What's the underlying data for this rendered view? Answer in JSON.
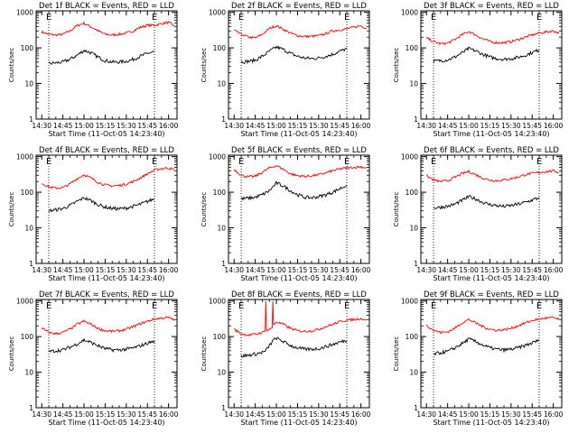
{
  "figure": {
    "x_ticks": [
      "14:30",
      "14:45",
      "15:00",
      "15:15",
      "15:30",
      "15:45",
      "16:00"
    ],
    "y_tick_labels": [
      "1",
      "10",
      "100",
      "1000"
    ],
    "xlabel": "Start Time (11-Oct-05 14:23:40)",
    "ylabel": "Counts/sec",
    "marker": "E",
    "colors": {
      "events": "#000000",
      "lld": "#ff0000",
      "axes": "#000000",
      "background": "#ffffff"
    }
  },
  "chart_data": [
    {
      "type": "line",
      "title": "Det 1f BLACK = Events, RED = LLD",
      "xlabel": "Start Time (11-Oct-05 14:23:40)",
      "ylabel": "Counts/sec",
      "y_scale": "log",
      "ylim": [
        1,
        1100
      ],
      "x_labels": [
        "14:30",
        "14:45",
        "15:00",
        "15:15",
        "15:30",
        "15:45",
        "16:00"
      ],
      "x_minutes": [
        0,
        15,
        30,
        45,
        60,
        75,
        90
      ],
      "xlim": [
        -4,
        96
      ],
      "vlines": [
        5,
        80
      ],
      "grid": false,
      "legend": "none",
      "series": [
        {
          "name": "LLD",
          "color": "#ff0000",
          "x": [
            0,
            5,
            10,
            15,
            20,
            25,
            30,
            35,
            40,
            45,
            50,
            55,
            60,
            65,
            70,
            75,
            80,
            85,
            90,
            94
          ],
          "y": [
            280,
            240,
            230,
            240,
            300,
            420,
            490,
            390,
            300,
            240,
            230,
            240,
            260,
            300,
            380,
            430,
            430,
            480,
            520,
            420
          ]
        },
        {
          "name": "Events",
          "color": "#000000",
          "x": [
            5,
            10,
            15,
            20,
            25,
            30,
            35,
            40,
            45,
            50,
            55,
            60,
            65,
            70,
            75,
            80
          ],
          "y": [
            36,
            38,
            40,
            48,
            62,
            85,
            72,
            55,
            44,
            40,
            40,
            42,
            48,
            58,
            70,
            78
          ]
        }
      ]
    },
    {
      "type": "line",
      "title": "Det 2f BLACK = Events, RED = LLD",
      "xlabel": "Start Time (11-Oct-05 14:23:40)",
      "ylabel": "Counts/sec",
      "y_scale": "log",
      "ylim": [
        1,
        1100
      ],
      "x_labels": [
        "14:30",
        "14:45",
        "15:00",
        "15:15",
        "15:30",
        "15:45",
        "16:00"
      ],
      "x_minutes": [
        0,
        15,
        30,
        45,
        60,
        75,
        90
      ],
      "xlim": [
        -4,
        96
      ],
      "vlines": [
        5,
        80
      ],
      "grid": false,
      "legend": "none",
      "series": [
        {
          "name": "LLD",
          "color": "#ff0000",
          "x": [
            0,
            5,
            10,
            15,
            20,
            25,
            30,
            35,
            40,
            45,
            50,
            55,
            60,
            65,
            70,
            75,
            80,
            85,
            90,
            94
          ],
          "y": [
            310,
            240,
            200,
            190,
            240,
            350,
            420,
            330,
            260,
            220,
            210,
            210,
            220,
            250,
            300,
            320,
            340,
            380,
            420,
            350
          ]
        },
        {
          "name": "Events",
          "color": "#000000",
          "x": [
            5,
            10,
            15,
            20,
            25,
            30,
            35,
            40,
            45,
            50,
            55,
            60,
            65,
            70,
            75,
            80
          ],
          "y": [
            40,
            42,
            45,
            58,
            80,
            105,
            90,
            70,
            58,
            52,
            50,
            52,
            58,
            66,
            80,
            95
          ]
        }
      ]
    },
    {
      "type": "line",
      "title": "Det 3f BLACK = Events, RED = LLD",
      "xlabel": "Start Time (11-Oct-05 14:23:40)",
      "ylabel": "Counts/sec",
      "y_scale": "log",
      "ylim": [
        1,
        1100
      ],
      "x_labels": [
        "14:30",
        "14:45",
        "15:00",
        "15:15",
        "15:30",
        "15:45",
        "16:00"
      ],
      "x_minutes": [
        0,
        15,
        30,
        45,
        60,
        75,
        90
      ],
      "xlim": [
        -4,
        96
      ],
      "vlines": [
        5,
        80
      ],
      "grid": false,
      "legend": "none",
      "series": [
        {
          "name": "LLD",
          "color": "#ff0000",
          "x": [
            0,
            5,
            10,
            15,
            20,
            25,
            30,
            35,
            40,
            45,
            50,
            55,
            60,
            65,
            70,
            75,
            80,
            85,
            90,
            94
          ],
          "y": [
            190,
            150,
            130,
            135,
            170,
            230,
            290,
            230,
            180,
            150,
            140,
            140,
            150,
            170,
            200,
            230,
            260,
            280,
            300,
            260
          ]
        },
        {
          "name": "Events",
          "color": "#000000",
          "x": [
            5,
            10,
            15,
            20,
            25,
            30,
            35,
            40,
            45,
            50,
            55,
            60,
            65,
            70,
            75,
            80
          ],
          "y": [
            42,
            44,
            46,
            55,
            72,
            95,
            82,
            66,
            55,
            50,
            48,
            50,
            54,
            62,
            74,
            88
          ]
        }
      ]
    },
    {
      "type": "line",
      "title": "Det 4f BLACK = Events, RED = LLD",
      "xlabel": "Start Time (11-Oct-05 14:23:40)",
      "ylabel": "Counts/sec",
      "y_scale": "log",
      "ylim": [
        1,
        1100
      ],
      "x_labels": [
        "14:30",
        "14:45",
        "15:00",
        "15:15",
        "15:30",
        "15:45",
        "16:00"
      ],
      "x_minutes": [
        0,
        15,
        30,
        45,
        60,
        75,
        90
      ],
      "xlim": [
        -4,
        96
      ],
      "vlines": [
        5,
        80
      ],
      "grid": false,
      "legend": "none",
      "series": [
        {
          "name": "LLD",
          "color": "#ff0000",
          "x": [
            0,
            5,
            10,
            15,
            20,
            25,
            30,
            35,
            40,
            45,
            50,
            55,
            60,
            65,
            70,
            75,
            80,
            85,
            90,
            94
          ],
          "y": [
            180,
            140,
            130,
            135,
            170,
            240,
            310,
            250,
            190,
            160,
            150,
            155,
            170,
            200,
            250,
            330,
            420,
            460,
            480,
            420
          ]
        },
        {
          "name": "Events",
          "color": "#000000",
          "x": [
            5,
            10,
            15,
            20,
            25,
            30,
            35,
            40,
            45,
            50,
            55,
            60,
            65,
            70,
            75,
            80
          ],
          "y": [
            30,
            32,
            35,
            42,
            55,
            70,
            58,
            45,
            38,
            35,
            34,
            36,
            40,
            46,
            55,
            65
          ]
        }
      ]
    },
    {
      "type": "line",
      "title": "Det 5f BLACK = Events, RED = LLD",
      "xlabel": "Start Time (11-Oct-05 14:23:40)",
      "ylabel": "Counts/sec",
      "y_scale": "log",
      "ylim": [
        1,
        1100
      ],
      "x_labels": [
        "14:30",
        "14:45",
        "15:00",
        "15:15",
        "15:30",
        "15:45",
        "16:00"
      ],
      "x_minutes": [
        0,
        15,
        30,
        45,
        60,
        75,
        90
      ],
      "xlim": [
        -4,
        96
      ],
      "vlines": [
        5,
        80
      ],
      "grid": false,
      "legend": "none",
      "series": [
        {
          "name": "LLD",
          "color": "#ff0000",
          "x": [
            0,
            5,
            10,
            15,
            20,
            25,
            30,
            35,
            40,
            45,
            50,
            55,
            60,
            65,
            70,
            75,
            80,
            85,
            90,
            94
          ],
          "y": [
            440,
            300,
            270,
            280,
            360,
            480,
            560,
            440,
            330,
            290,
            280,
            290,
            310,
            350,
            400,
            450,
            480,
            500,
            520,
            480
          ]
        },
        {
          "name": "Events",
          "color": "#000000",
          "x": [
            5,
            10,
            15,
            20,
            25,
            30,
            35,
            40,
            45,
            50,
            55,
            60,
            65,
            70,
            75,
            80
          ],
          "y": [
            65,
            68,
            72,
            85,
            110,
            180,
            150,
            110,
            85,
            72,
            70,
            75,
            85,
            100,
            125,
            160
          ]
        }
      ]
    },
    {
      "type": "line",
      "title": "Det 6f BLACK = Events, RED = LLD",
      "xlabel": "Start Time (11-Oct-05 14:23:40)",
      "ylabel": "Counts/sec",
      "y_scale": "log",
      "ylim": [
        1,
        1100
      ],
      "x_labels": [
        "14:30",
        "14:45",
        "15:00",
        "15:15",
        "15:30",
        "15:45",
        "16:00"
      ],
      "x_minutes": [
        0,
        15,
        30,
        45,
        60,
        75,
        90
      ],
      "xlim": [
        -4,
        96
      ],
      "vlines": [
        5,
        80
      ],
      "grid": false,
      "legend": "none",
      "series": [
        {
          "name": "LLD",
          "color": "#ff0000",
          "x": [
            0,
            5,
            10,
            15,
            20,
            25,
            30,
            35,
            40,
            45,
            50,
            55,
            60,
            65,
            70,
            75,
            80,
            85,
            90,
            94
          ],
          "y": [
            290,
            220,
            200,
            210,
            260,
            330,
            380,
            310,
            250,
            220,
            210,
            220,
            240,
            270,
            310,
            340,
            360,
            380,
            400,
            360
          ]
        },
        {
          "name": "Events",
          "color": "#000000",
          "x": [
            5,
            10,
            15,
            20,
            25,
            30,
            35,
            40,
            45,
            50,
            55,
            60,
            65,
            70,
            75,
            80
          ],
          "y": [
            36,
            38,
            40,
            46,
            58,
            75,
            65,
            52,
            45,
            42,
            40,
            42,
            46,
            52,
            60,
            70
          ]
        }
      ]
    },
    {
      "type": "line",
      "title": "Det 7f BLACK = Events, RED = LLD",
      "xlabel": "Start Time (11-Oct-05 14:23:40)",
      "ylabel": "Counts/sec",
      "y_scale": "log",
      "ylim": [
        1,
        1100
      ],
      "x_labels": [
        "14:30",
        "14:45",
        "15:00",
        "15:15",
        "15:30",
        "15:45",
        "16:00"
      ],
      "x_minutes": [
        0,
        15,
        30,
        45,
        60,
        75,
        90
      ],
      "xlim": [
        -4,
        96
      ],
      "vlines": [
        5,
        80
      ],
      "grid": false,
      "legend": "none",
      "series": [
        {
          "name": "LLD",
          "color": "#ff0000",
          "x": [
            0,
            5,
            10,
            15,
            20,
            25,
            30,
            35,
            40,
            45,
            50,
            55,
            60,
            65,
            70,
            75,
            80,
            85,
            90,
            94
          ],
          "y": [
            170,
            130,
            120,
            130,
            160,
            220,
            270,
            220,
            170,
            145,
            140,
            145,
            160,
            190,
            230,
            270,
            310,
            330,
            340,
            300
          ]
        },
        {
          "name": "Events",
          "color": "#000000",
          "x": [
            5,
            10,
            15,
            20,
            25,
            30,
            35,
            40,
            45,
            50,
            55,
            60,
            65,
            70,
            75,
            80
          ],
          "y": [
            38,
            40,
            42,
            50,
            62,
            80,
            68,
            55,
            46,
            42,
            42,
            44,
            48,
            55,
            65,
            75
          ]
        }
      ]
    },
    {
      "type": "line",
      "title": "Det 8f BLACK = Events, RED = LLD",
      "xlabel": "Start Time (11-Oct-05 14:23:40)",
      "ylabel": "Counts/sec",
      "y_scale": "log",
      "ylim": [
        1,
        1100
      ],
      "x_labels": [
        "14:30",
        "14:45",
        "15:00",
        "15:15",
        "15:30",
        "15:45",
        "16:00"
      ],
      "x_minutes": [
        0,
        15,
        30,
        45,
        60,
        75,
        90
      ],
      "xlim": [
        -4,
        96
      ],
      "vlines": [
        5,
        80
      ],
      "grid": false,
      "legend": "none",
      "series": [
        {
          "name": "LLD",
          "color": "#ff0000",
          "x": [
            0,
            5,
            10,
            15,
            20,
            22,
            22.5,
            23,
            27,
            27.5,
            28,
            30,
            35,
            40,
            45,
            50,
            55,
            60,
            65,
            70,
            75,
            80,
            85,
            90,
            94
          ],
          "y": [
            160,
            120,
            110,
            115,
            130,
            140,
            1000,
            150,
            175,
            1000,
            210,
            260,
            220,
            170,
            145,
            140,
            145,
            160,
            190,
            220,
            260,
            290,
            300,
            320,
            290
          ]
        },
        {
          "name": "Events",
          "color": "#000000",
          "x": [
            5,
            10,
            15,
            20,
            22,
            28,
            30,
            35,
            40,
            45,
            50,
            55,
            60,
            65,
            70,
            75,
            80
          ],
          "y": [
            28,
            30,
            32,
            36,
            38,
            80,
            90,
            72,
            56,
            48,
            44,
            44,
            46,
            52,
            60,
            70,
            78
          ]
        }
      ]
    },
    {
      "type": "line",
      "title": "Det 9f BLACK = Events, RED = LLD",
      "xlabel": "Start Time (11-Oct-05 14:23:40)",
      "ylabel": "Counts/sec",
      "y_scale": "log",
      "ylim": [
        1,
        1100
      ],
      "x_labels": [
        "14:30",
        "14:45",
        "15:00",
        "15:15",
        "15:30",
        "15:45",
        "16:00"
      ],
      "x_minutes": [
        0,
        15,
        30,
        45,
        60,
        75,
        90
      ],
      "xlim": [
        -4,
        96
      ],
      "vlines": [
        5,
        80
      ],
      "grid": false,
      "legend": "none",
      "series": [
        {
          "name": "LLD",
          "color": "#ff0000",
          "x": [
            0,
            5,
            10,
            15,
            20,
            25,
            30,
            35,
            40,
            45,
            50,
            55,
            60,
            65,
            70,
            75,
            80,
            85,
            90,
            94
          ],
          "y": [
            210,
            150,
            130,
            135,
            170,
            240,
            300,
            240,
            190,
            160,
            150,
            155,
            170,
            200,
            240,
            280,
            310,
            330,
            340,
            300
          ]
        },
        {
          "name": "Events",
          "color": "#000000",
          "x": [
            5,
            10,
            15,
            20,
            25,
            30,
            35,
            40,
            45,
            50,
            55,
            60,
            65,
            70,
            75,
            80
          ],
          "y": [
            32,
            35,
            38,
            48,
            62,
            85,
            72,
            58,
            48,
            44,
            42,
            44,
            48,
            56,
            66,
            80
          ]
        }
      ]
    }
  ]
}
